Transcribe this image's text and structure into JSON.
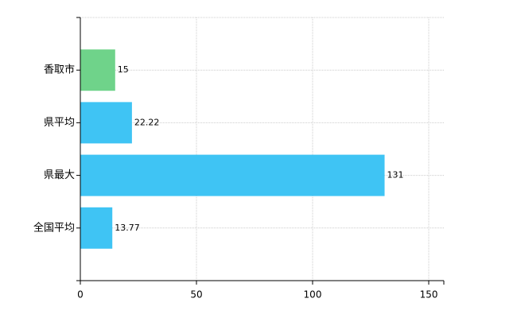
{
  "chart_data": {
    "type": "barh",
    "categories": [
      "香取市",
      "県平均",
      "県最大",
      "全国平均"
    ],
    "values": [
      15,
      22.22,
      131,
      13.77
    ],
    "colors": [
      "#6fd38a",
      "#3fc4f4",
      "#3fc4f4",
      "#3fc4f4"
    ],
    "xlim": [
      0,
      156.5
    ],
    "xticks": [
      0,
      50,
      100,
      150
    ],
    "grid": true
  }
}
